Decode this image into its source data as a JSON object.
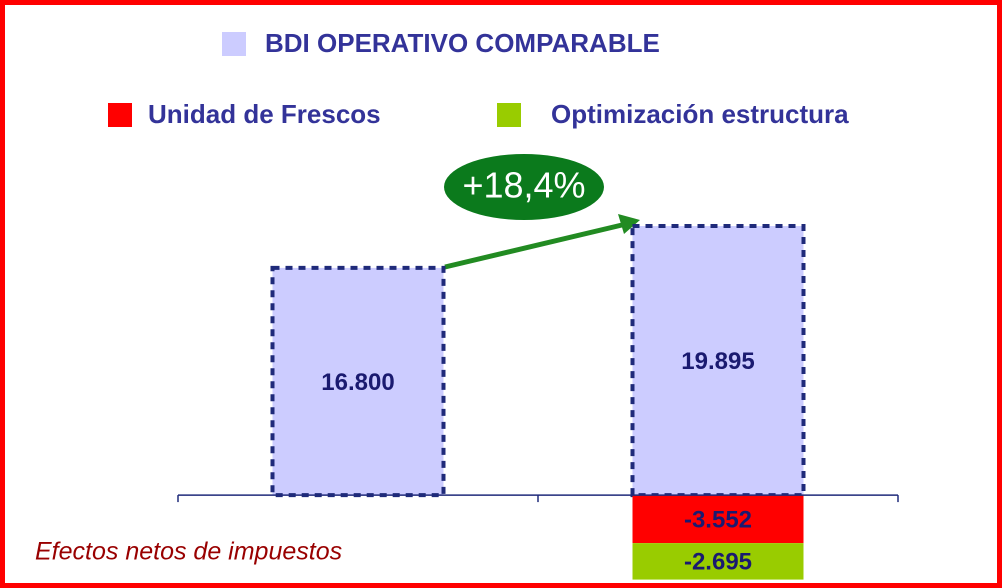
{
  "chart_data": {
    "type": "bar",
    "stacked": true,
    "categories": [
      null,
      null
    ],
    "series": [
      {
        "name": "BDI OPERATIVO COMPARABLE",
        "color": "#ccccff",
        "values": [
          16800,
          19895
        ],
        "value_labels": [
          "16.800",
          "19.895"
        ]
      },
      {
        "name": "Unidad de Frescos",
        "color": "#ff0000",
        "values": [
          null,
          -3552
        ],
        "value_labels": [
          null,
          "-3.552"
        ]
      },
      {
        "name": "Optimización estructura",
        "color": "#99cc00",
        "values": [
          null,
          -2695
        ],
        "value_labels": [
          null,
          "-2.695"
        ]
      }
    ],
    "ylim": [
      -6500,
      25000
    ],
    "annotations": [
      "+18,4%",
      "Efectos netos de impuestos"
    ]
  }
}
